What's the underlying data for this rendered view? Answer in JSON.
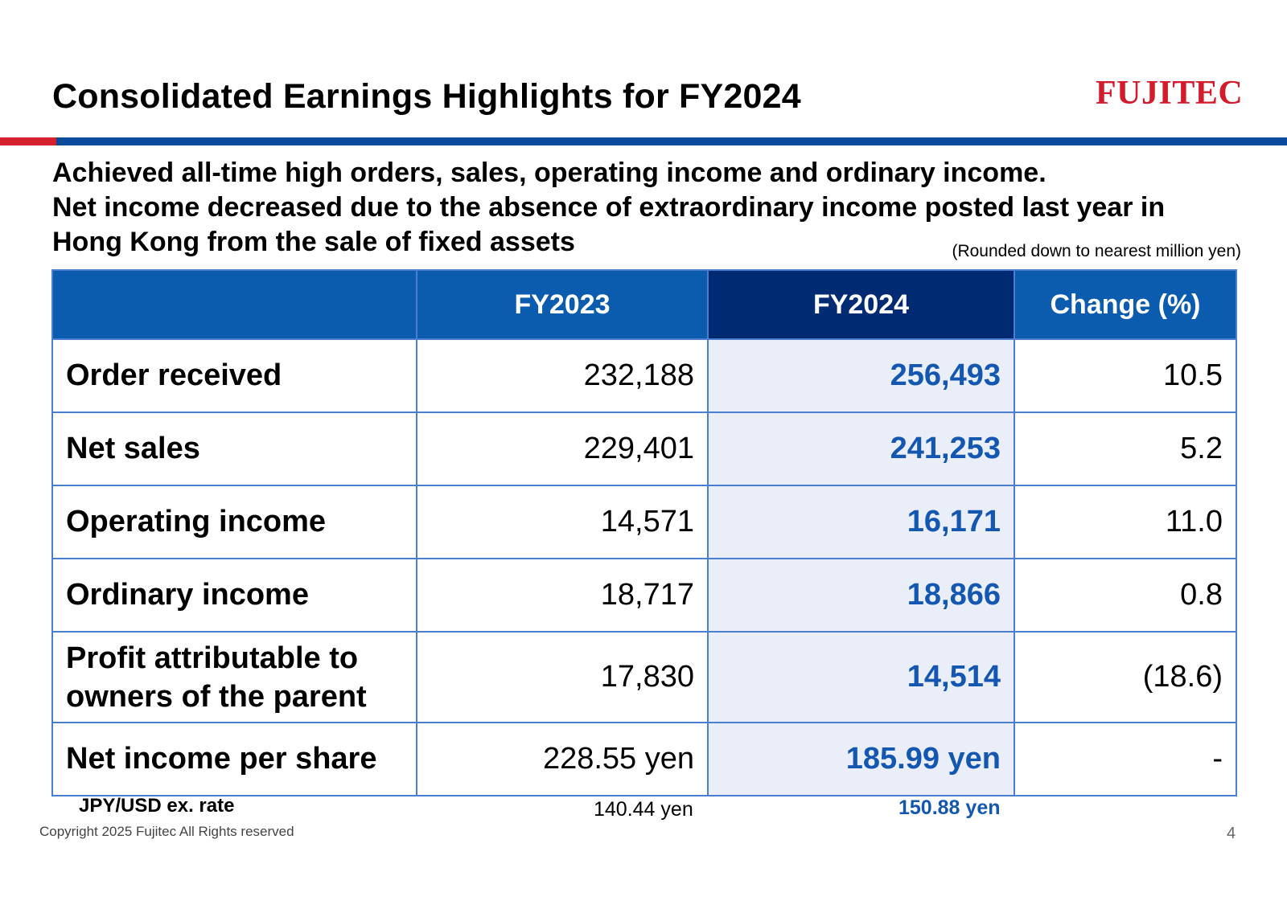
{
  "header": {
    "title": "Consolidated Earnings Highlights for FY2024",
    "logo_text": "FUJITEC",
    "brand_red": "#d7202e",
    "brand_blue": "#0a4a9b"
  },
  "headline": {
    "line1": "Achieved all-time high orders, sales, operating income and ordinary income.",
    "line2": "Net income decreased due to the absence of extraordinary income posted last year in",
    "line3": "Hong Kong from the sale of fixed assets"
  },
  "note": "(Rounded down to nearest million yen)",
  "table": {
    "columns": [
      "",
      "FY2023",
      "FY2024",
      "Change (%)"
    ],
    "rows": [
      {
        "label": "Order received",
        "fy2023": "232,188",
        "fy2024": "256,493",
        "change": "10.5"
      },
      {
        "label": "Net sales",
        "fy2023": "229,401",
        "fy2024": "241,253",
        "change": "5.2"
      },
      {
        "label": "Operating income",
        "fy2023": "14,571",
        "fy2024": "16,171",
        "change": "11.0"
      },
      {
        "label": "Ordinary income",
        "fy2023": "18,717",
        "fy2024": "18,866",
        "change": "0.8"
      },
      {
        "label_line1": "Profit attributable to",
        "label_line2": "owners of the parent",
        "fy2023": "17,830",
        "fy2024": "14,514",
        "change": "(18.6)"
      },
      {
        "label": "Net income per share",
        "fy2023": "228.55 yen",
        "fy2024": "185.99 yen",
        "change": "-"
      }
    ]
  },
  "fx": {
    "label": "JPY/USD ex. rate",
    "fy2023": "140.44 yen",
    "fy2024": "150.88 yen"
  },
  "footer": {
    "copyright": "Copyright 2025 Fujitec All Rights reserved",
    "page": "4"
  }
}
